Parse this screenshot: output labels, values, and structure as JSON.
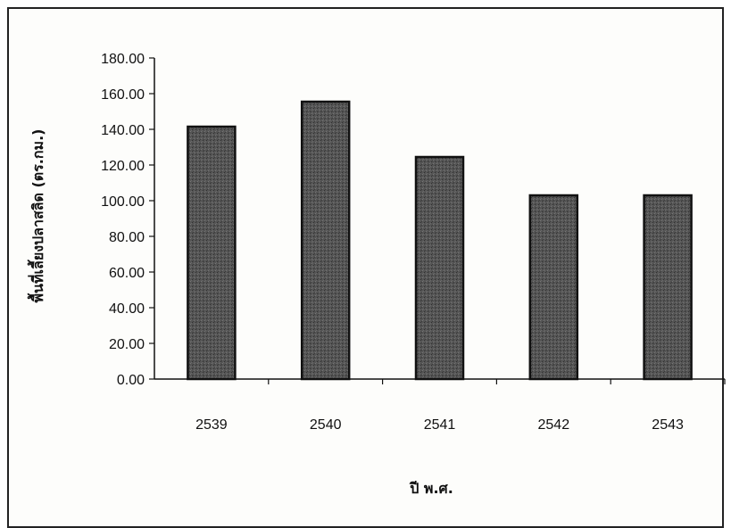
{
  "chart_data": {
    "type": "bar",
    "categories": [
      "2539",
      "2540",
      "2541",
      "2542",
      "2543"
    ],
    "values": [
      141.5,
      155.5,
      124.5,
      103.0,
      103.0
    ],
    "xlabel": "ปี พ.ศ.",
    "ylabel": "พื้นที่เลี้ยงปลาสลิด (ตร.กม.)",
    "ylim": [
      0,
      180
    ],
    "yticks": [
      "0.00",
      "20.00",
      "40.00",
      "60.00",
      "80.00",
      "100.00",
      "120.00",
      "140.00",
      "160.00",
      "180.00"
    ],
    "grid": false,
    "legend": "none",
    "bar_color": "#4a4a4a",
    "bar_border_color": "#111111"
  }
}
